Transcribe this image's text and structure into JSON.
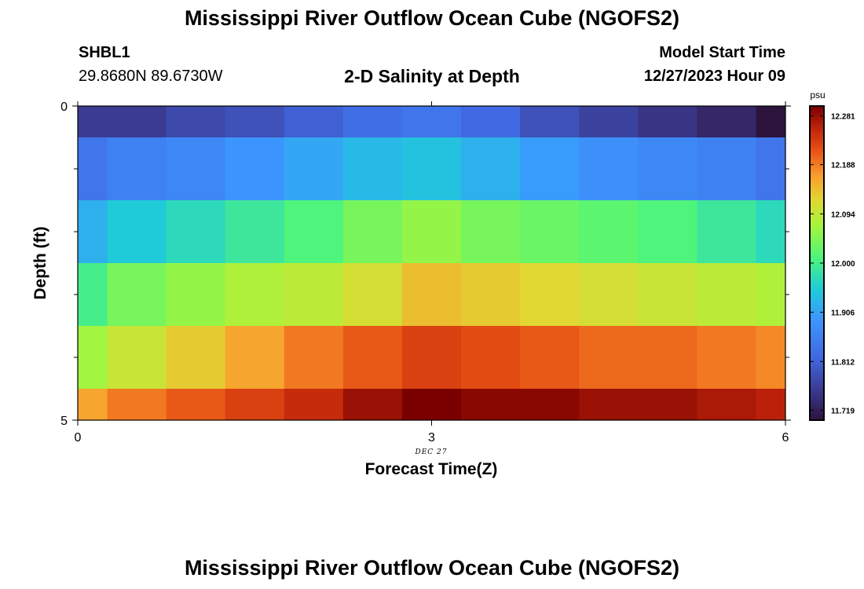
{
  "header": {
    "title": "Mississippi River Outflow Ocean Cube (NGOFS2)",
    "station": "SHBL1",
    "coordinates": "29.8680N  89.6730W",
    "subtitle": "2-D Salinity at Depth",
    "start_label": "Model Start Time",
    "start_value": "12/27/2023 Hour 09"
  },
  "footer": {
    "title": "Mississippi River Outflow Ocean Cube (NGOFS2)"
  },
  "chart_data": {
    "type": "heatmap",
    "title": "2-D Salinity at Depth",
    "xlabel": "Forecast Time(Z)",
    "ylabel": "Depth (ft)",
    "x_ticks": [
      "0",
      "3",
      "6"
    ],
    "y_ticks": [
      "0",
      "5"
    ],
    "x_sublabel": "DEC 27",
    "xlim": [
      0,
      6
    ],
    "ylim": [
      0,
      5
    ],
    "x_edges": [
      0,
      0.25,
      0.75,
      1.25,
      1.75,
      2.25,
      2.75,
      3.25,
      3.75,
      4.25,
      4.75,
      5.25,
      5.75,
      6
    ],
    "depth_edges": [
      0,
      0.5,
      1.5,
      2.5,
      3.5,
      4.5,
      5
    ],
    "colorbar": {
      "unit": "psu",
      "range": [
        11.7,
        12.3
      ],
      "ticks": [
        "12.281",
        "12.188",
        "12.094",
        "12.000",
        "11.906",
        "11.812",
        "11.719"
      ]
    },
    "values": [
      [
        11.76,
        11.76,
        11.78,
        11.79,
        11.81,
        11.83,
        11.84,
        11.82,
        11.79,
        11.77,
        11.75,
        11.73,
        11.7
      ],
      [
        11.84,
        11.86,
        11.87,
        11.89,
        11.91,
        11.93,
        11.94,
        11.92,
        11.9,
        11.88,
        11.87,
        11.86,
        11.84
      ],
      [
        11.92,
        11.95,
        11.97,
        11.99,
        12.01,
        12.04,
        12.06,
        12.04,
        12.03,
        12.02,
        12.01,
        11.99,
        11.97
      ],
      [
        12.0,
        12.04,
        12.06,
        12.08,
        12.09,
        12.11,
        12.14,
        12.13,
        12.12,
        12.11,
        12.1,
        12.09,
        12.08
      ],
      [
        12.07,
        12.1,
        12.13,
        12.16,
        12.19,
        12.21,
        12.23,
        12.22,
        12.21,
        12.2,
        12.2,
        12.19,
        12.18
      ],
      [
        12.16,
        12.19,
        12.21,
        12.23,
        12.25,
        12.28,
        12.3,
        12.29,
        12.29,
        12.28,
        12.28,
        12.27,
        12.26
      ]
    ]
  }
}
